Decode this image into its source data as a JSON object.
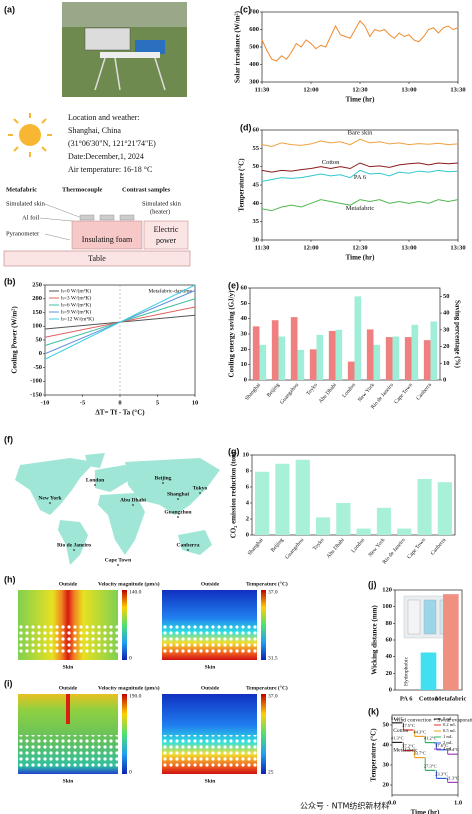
{
  "diagram_a": {
    "panel": "(a)",
    "location_title": "Location and weather:",
    "location": "Shanghai, China",
    "coordinates": "(31°06'30\"N, 121°21'74\"E)",
    "date": "Date:December,1, 2024",
    "air_temperature": "Air temperature: 16-18 °C",
    "metafabric": "Metafabric",
    "thermocouple": "Thermocouple",
    "contrast_samples": "Contrast samples",
    "simulated_skin": "Simulated skin",
    "al_foil": "Al foil",
    "pyranometer": "Pyranometer",
    "simulated_skin_heater": [
      "Simulated skin",
      "(heater)"
    ],
    "insulating_foam": "Insulating foam",
    "electric_power": [
      "Electric",
      "power"
    ],
    "table": "Table"
  },
  "chart_data": [
    {
      "type": "line",
      "panel": "(c)",
      "y_label": "Solar irradiance (W/m²)",
      "x_label": "Time (hr)",
      "x": [
        "11:30",
        "11:33",
        "11:36",
        "11:39",
        "11:42",
        "11:45",
        "11:48",
        "11:51",
        "11:54",
        "11:57",
        "12:00",
        "12:03",
        "12:06",
        "12:09",
        "12:12",
        "12:15",
        "12:18",
        "12:21",
        "12:24",
        "12:27",
        "12:30",
        "12:33",
        "12:36",
        "12:39",
        "12:42",
        "12:45",
        "12:48",
        "12:51",
        "12:54",
        "12:57",
        "13:00",
        "13:03",
        "13:06",
        "13:09",
        "13:12",
        "13:15",
        "13:18",
        "13:21",
        "13:24",
        "13:27",
        "13:30"
      ],
      "values": [
        540,
        480,
        430,
        420,
        450,
        430,
        470,
        520,
        500,
        540,
        520,
        490,
        510,
        500,
        560,
        620,
        570,
        560,
        550,
        600,
        650,
        620,
        560,
        600,
        590,
        600,
        570,
        550,
        580,
        560,
        570,
        540,
        530,
        560,
        600,
        610,
        580,
        610,
        620,
        600,
        610
      ],
      "color": "#f08a30",
      "xlim": [
        "11:30",
        "13:30"
      ],
      "xticks": [
        "11:30",
        "12:00",
        "12:30",
        "13:00",
        "13:30"
      ],
      "ylim": [
        300,
        700
      ],
      "yticks": [
        300,
        400,
        500,
        600,
        700
      ]
    },
    {
      "type": "line",
      "panel": "(d)",
      "y_label": "Temperature (°C)",
      "x_label": "Time (hr)",
      "legend": "inline",
      "x": [
        "11:30",
        "11:36",
        "11:42",
        "11:48",
        "11:54",
        "12:00",
        "12:06",
        "12:12",
        "12:18",
        "12:24",
        "12:30",
        "12:36",
        "12:42",
        "12:48",
        "12:54",
        "13:00",
        "13:06",
        "13:12",
        "13:18",
        "13:24",
        "13:30"
      ],
      "series": [
        {
          "name": "Bare skin",
          "color": "#f0a040",
          "values": [
            56,
            55.5,
            56.5,
            56,
            55.8,
            56.2,
            57,
            56.5,
            56.8,
            56,
            57.5,
            56.5,
            56.8,
            56.2,
            56.5,
            56,
            56.3,
            56.1,
            56.4,
            56,
            56.2
          ]
        },
        {
          "name": "Cotton",
          "color": "#8b1a1a",
          "values": [
            49,
            48.5,
            49,
            48.8,
            49.2,
            49.5,
            50,
            49.5,
            50,
            49.5,
            51,
            50,
            50.2,
            49.8,
            50.5,
            50.8,
            51,
            50.5,
            51,
            50.8,
            51
          ]
        },
        {
          "name": "PA 6",
          "color": "#30c8d0",
          "values": [
            46,
            46.5,
            47,
            46.8,
            47,
            47.5,
            48,
            47.5,
            47.8,
            47,
            49,
            48,
            48.2,
            47.5,
            48.5,
            48.2,
            48.8,
            48.5,
            49,
            48.6,
            48.8
          ]
        },
        {
          "name": "Metafabric",
          "color": "#50b850",
          "values": [
            38.5,
            38,
            39,
            39.5,
            39,
            40,
            41,
            40.5,
            40,
            39.5,
            41,
            40.5,
            41,
            40,
            40.5,
            40,
            40.5,
            40,
            41,
            40.5,
            41
          ]
        }
      ],
      "xlim": [
        "11:30",
        "13:30"
      ],
      "xticks": [
        "11:30",
        "12:00",
        "12:30",
        "13:00",
        "13:30"
      ],
      "ylim": [
        30,
        60
      ],
      "yticks": [
        30,
        35,
        40,
        45,
        50,
        55,
        60
      ]
    },
    {
      "type": "line",
      "panel": "(b)",
      "y_label": "Cooling Power (W/m²)",
      "x_label": "ΔT= Tf - Ta (°C)",
      "annotation": "Metafabric-daytime",
      "legend": "upper left",
      "x": [
        -10,
        10
      ],
      "series": [
        {
          "name": "h=0 W/(m²K)",
          "color": "#555555",
          "values": [
            90,
            140
          ]
        },
        {
          "name": "h=3 W/(m²K)",
          "color": "#e06060",
          "values": [
            60,
            170
          ]
        },
        {
          "name": "h=6 W/(m²K)",
          "color": "#40c0a0",
          "values": [
            30,
            200
          ]
        },
        {
          "name": "h=9 W/(m²K)",
          "color": "#6090e0",
          "values": [
            0,
            230
          ]
        },
        {
          "name": "h=12 W/(m²K)",
          "color": "#40d0e0",
          "values": [
            -20,
            250
          ]
        }
      ],
      "xlim": [
        -10,
        10
      ],
      "xticks": [
        -10,
        -5,
        0,
        5,
        10
      ],
      "ylim": [
        -150,
        250
      ],
      "yticks": [
        -150,
        -100,
        -50,
        0,
        50,
        100,
        150,
        200,
        250
      ]
    },
    {
      "type": "bar",
      "panel": "(e)",
      "y_label": "Cooling energy saving (GJ/y)",
      "y2_label": "Saving percentage (%)",
      "categories": [
        "Shanghai",
        "Beijing",
        "Guangzhou",
        "Toyko",
        "Abu Dhabi",
        "London",
        "New York",
        "Rio de Janeiro",
        "Cape Town",
        "Canberra"
      ],
      "series": [
        {
          "name": "Cooling energy saving",
          "color": "#f08080",
          "values": [
            35,
            39,
            41,
            20,
            32,
            12,
            33,
            28,
            28,
            26
          ]
        },
        {
          "name": "Saving percentage",
          "color": "#a0eed8",
          "axis": "y2",
          "values": [
            21,
            26,
            18,
            27,
            30,
            50,
            21,
            26,
            33,
            35
          ]
        }
      ],
      "ylim": [
        0,
        60
      ],
      "yticks": [
        0,
        10,
        20,
        30,
        40,
        50,
        60
      ],
      "y2lim": [
        0,
        55
      ],
      "y2ticks": [
        0,
        10,
        20,
        30,
        40,
        50
      ]
    },
    {
      "type": "bar",
      "panel": "(g)",
      "y_label": "CO₂ emission reduction (ton)",
      "categories": [
        "Shanghai",
        "Beijing",
        "Guangzhou",
        "Toyko",
        "Abu Dhabi",
        "London",
        "New York",
        "Rio de Janeiro",
        "Cape Town",
        "Canberra"
      ],
      "values": [
        7.9,
        8.9,
        9.4,
        2.2,
        4.0,
        0.8,
        3.4,
        0.8,
        7.0,
        6.6
      ],
      "color": "#a8f0d8",
      "ylim": [
        0,
        10
      ],
      "yticks": [
        0,
        2,
        4,
        6,
        8,
        10
      ]
    },
    {
      "type": "bar",
      "panel": "(j)",
      "y_label": "Wicking distance (mm)",
      "annotation": "Hydrophobic",
      "categories": [
        "PA 6",
        "Cotton",
        "Metafabric"
      ],
      "values": [
        0,
        45,
        115
      ],
      "colors": [
        "#cccccc",
        "#40e0f0",
        "#f09080"
      ],
      "ylim": [
        0,
        120
      ],
      "yticks": [
        0,
        20,
        40,
        60,
        80,
        100,
        120
      ]
    },
    {
      "type": "line",
      "panel": "(k)",
      "y_label": "Temperature (°C)",
      "x_label": "Time (hr)",
      "annotation": "Wind convection + Sweat evaporation",
      "legend": "inline",
      "x": [
        0.08,
        0.25,
        0.42,
        0.58,
        0.75,
        0.92
      ],
      "stage_names": [
        "0 mL",
        "0.2 mL",
        "0.5 mL",
        "1 mL",
        "2 mL",
        "4 mL"
      ],
      "stage_colors": [
        "#222222",
        "#e03030",
        "#f0a020",
        "#30b060",
        "#3060e0",
        "#a040c0"
      ],
      "series": [
        {
          "name": "Cotton",
          "color": "#555555",
          "values": [
            51.1,
            47.5,
            44.3,
            41.2,
            37.6,
            35.4
          ],
          "value_labels": [
            "51.1°C",
            "47.5°C",
            "44.3°C",
            "41.2°C",
            "37.6°C",
            "35.4°C"
          ]
        },
        {
          "name": "Metafabric",
          "color": "#555555",
          "values": [
            41.3,
            37.2,
            33.7,
            27.3,
            23.3,
            21.3
          ],
          "value_labels": [
            "41.3°C",
            "37.2°C",
            "33.7°C",
            "27.3°C",
            "23.3°C",
            "21.3°C"
          ]
        }
      ],
      "xlim": [
        0,
        1
      ],
      "xticks": [
        {
          "value": 0,
          "label": "0.0"
        },
        {
          "value": 1,
          "label": "1.0"
        }
      ],
      "ylim": [
        15,
        55
      ],
      "yticks": [
        20,
        30,
        40,
        50
      ]
    }
  ],
  "map_f": {
    "panel": "(f)",
    "cities": [
      "London",
      "Beijing",
      "Tokyo",
      "New York",
      "Abu Dhabi",
      "Shanghai",
      "Guangzhou",
      "Rio de Janeiro",
      "Cape Town",
      "Canberra"
    ]
  },
  "sim_h": {
    "panel": "(h)",
    "outside": "Outside",
    "skin": "Skin",
    "velocity_title": "Velocity magnitude (μm/s)",
    "velocity_max": "140.0",
    "velocity_min": "0",
    "temperature_title": "Temperature (°C)",
    "temperature_max": "37.0",
    "temperature_min": "31.5"
  },
  "sim_i": {
    "panel": "(i)",
    "outside": "Outside",
    "skin": "Skin",
    "velocity_title": "Velocity magnitude (μm/s)",
    "velocity_max": "190.0",
    "velocity_min": "0",
    "temperature_title": "Temperature (°C)",
    "temperature_max": "37.0",
    "temperature_min": "25"
  },
  "watermark": "公众号 · NTM纺织新材料"
}
